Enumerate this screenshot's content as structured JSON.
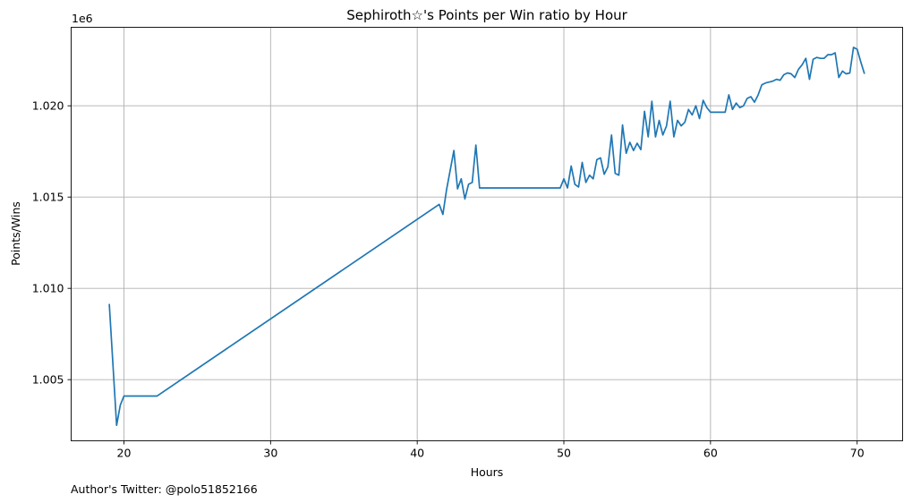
{
  "chart_data": {
    "type": "line",
    "title": "Sephiroth☆'s Points per Win ratio by Hour",
    "xlabel": "Hours",
    "ylabel": "Points/Wins",
    "y_offset_label": "1e6",
    "footnote": "Author's Twitter: @polo51852166",
    "grid": true,
    "line_color": "#1f77b4",
    "xlim": [
      16.4,
      73.1
    ],
    "ylim": [
      1001650,
      1024300
    ],
    "xticks": [
      20,
      30,
      40,
      50,
      60,
      70
    ],
    "xtick_labels": [
      "20",
      "30",
      "40",
      "50",
      "60",
      "70"
    ],
    "yticks": [
      1005000,
      1010000,
      1015000,
      1020000
    ],
    "ytick_labels": [
      "1.005",
      "1.010",
      "1.015",
      "1.020"
    ],
    "series": [
      {
        "x": [
          19.0,
          19.5,
          19.75,
          20.0,
          20.5,
          21.0,
          22.25,
          41.5,
          41.75,
          42.0,
          42.5,
          42.75,
          43.0,
          43.25,
          43.5,
          43.75,
          44.0,
          44.25,
          49.75,
          50.0,
          50.25,
          50.5,
          50.75,
          51.0,
          51.25,
          51.5,
          51.75,
          52.0,
          52.25,
          52.5,
          52.75,
          53.0,
          53.25,
          53.5,
          53.75,
          54.0,
          54.25,
          54.5,
          54.75,
          55.0,
          55.25,
          55.5,
          55.75,
          56.0,
          56.25,
          56.5,
          56.75,
          57.0,
          57.25,
          57.5,
          57.75,
          58.0,
          58.25,
          58.5,
          58.75,
          59.0,
          59.25,
          59.5,
          59.75,
          60.0,
          60.25,
          60.5,
          60.75,
          61.0,
          61.25,
          61.5,
          61.75,
          62.0,
          62.25,
          62.5,
          62.75,
          63.0,
          63.25,
          63.5,
          63.75,
          64.0,
          64.25,
          64.5,
          64.75,
          65.0,
          65.25,
          65.5,
          65.75,
          66.0,
          66.25,
          66.5,
          66.75,
          67.0,
          67.25,
          67.5,
          67.75,
          68.0,
          68.25,
          68.5,
          68.75,
          69.0,
          69.25,
          69.5,
          69.75,
          70.0,
          70.25,
          70.5
        ],
        "y": [
          1009150,
          1002500,
          1003600,
          1004100,
          1004100,
          1004100,
          1004100,
          1014600,
          1014050,
          1015400,
          1017550,
          1015450,
          1016000,
          1014900,
          1015700,
          1015800,
          1017850,
          1015500,
          1015500,
          1016000,
          1015500,
          1016700,
          1015700,
          1015550,
          1016900,
          1015800,
          1016200,
          1016000,
          1017050,
          1017150,
          1016250,
          1016650,
          1018400,
          1016300,
          1016200,
          1018950,
          1017400,
          1018000,
          1017550,
          1017950,
          1017600,
          1019700,
          1018300,
          1020250,
          1018300,
          1019200,
          1018400,
          1018900,
          1020250,
          1018300,
          1019200,
          1018900,
          1019100,
          1019800,
          1019500,
          1020000,
          1019300,
          1020300,
          1019900,
          1019650,
          1019650,
          1019650,
          1019650,
          1019650,
          1020600,
          1019800,
          1020150,
          1019900,
          1020000,
          1020400,
          1020500,
          1020200,
          1020600,
          1021150,
          1021250,
          1021300,
          1021350,
          1021450,
          1021400,
          1021700,
          1021800,
          1021750,
          1021550,
          1022000,
          1022250,
          1022600,
          1021450,
          1022550,
          1022650,
          1022600,
          1022600,
          1022800,
          1022800,
          1022900,
          1021550,
          1021900,
          1021750,
          1021800,
          1023200,
          1023100,
          1022400,
          1021750
        ]
      }
    ]
  }
}
